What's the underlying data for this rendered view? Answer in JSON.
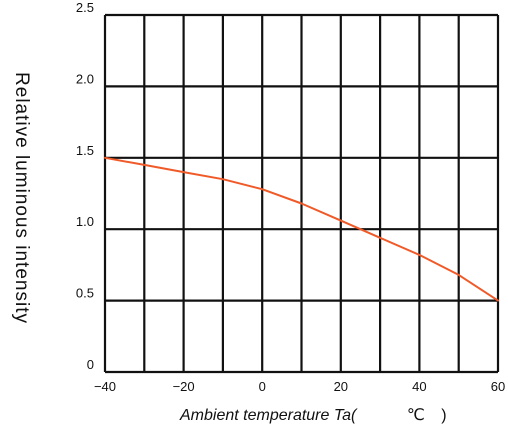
{
  "chart_data": {
    "type": "line",
    "title": "",
    "xlabel_parts": [
      "Ambient temperature Ta(",
      "℃",
      ")"
    ],
    "ylabel": "Relative luminous intensity",
    "xlim": [
      -40,
      60
    ],
    "ylim": [
      0,
      2.5
    ],
    "x_ticks": [
      -40,
      -20,
      0,
      20,
      40,
      60
    ],
    "x_tick_labels": [
      "−40",
      "−20",
      "0",
      "20",
      "40",
      "60"
    ],
    "y_ticks": [
      0,
      0.5,
      1.0,
      1.5,
      2.0,
      2.5
    ],
    "y_tick_labels": [
      "0",
      "0.5",
      "1.0",
      "1.5",
      "2.0",
      "2.5"
    ],
    "grid": true,
    "series": [
      {
        "color": "#f05a28",
        "x": [
          -40,
          -30,
          -20,
          -10,
          0,
          10,
          20,
          30,
          40,
          50,
          60
        ],
        "y": [
          1.5,
          1.45,
          1.4,
          1.35,
          1.28,
          1.18,
          1.06,
          0.94,
          0.82,
          0.68,
          0.5
        ]
      }
    ]
  }
}
